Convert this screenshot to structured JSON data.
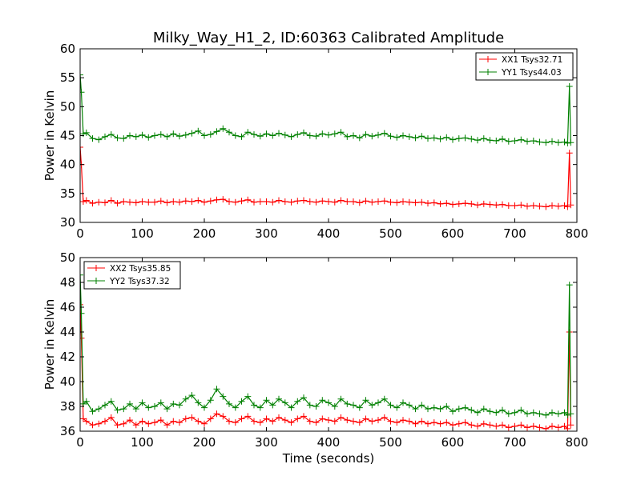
{
  "figure": {
    "title": "Milky_Way_H1_2, ID:60363 Calibrated Amplitude",
    "xlabel": "Time (seconds)"
  },
  "chart_data": [
    {
      "type": "line",
      "panel": "top",
      "title": "Milky_Way_H1_2, ID:60363 Calibrated Amplitude",
      "xlabel": "",
      "ylabel": "Power in Kelvin",
      "xlim": [
        0,
        800
      ],
      "ylim": [
        30,
        60
      ],
      "xticks": [
        0,
        100,
        200,
        300,
        400,
        500,
        600,
        700,
        800
      ],
      "yticks": [
        30,
        35,
        40,
        45,
        50,
        55,
        60
      ],
      "grid": false,
      "legend_position": "top-right",
      "series": [
        {
          "name": "XX1 Tsys32.71",
          "color": "#ff0000",
          "marker": "+",
          "x": [
            0,
            2,
            5,
            10,
            20,
            30,
            40,
            50,
            60,
            70,
            80,
            90,
            100,
            110,
            120,
            130,
            140,
            150,
            160,
            170,
            180,
            190,
            200,
            210,
            220,
            230,
            240,
            250,
            260,
            270,
            280,
            290,
            300,
            310,
            320,
            330,
            340,
            350,
            360,
            370,
            380,
            390,
            400,
            410,
            420,
            430,
            440,
            450,
            460,
            470,
            480,
            490,
            500,
            510,
            520,
            530,
            540,
            550,
            560,
            570,
            580,
            590,
            600,
            610,
            620,
            630,
            640,
            650,
            660,
            670,
            680,
            690,
            700,
            710,
            720,
            730,
            740,
            750,
            760,
            770,
            780,
            785,
            788,
            790
          ],
          "values": [
            43.0,
            40.0,
            33.6,
            33.8,
            33.3,
            33.5,
            33.4,
            33.8,
            33.3,
            33.6,
            33.5,
            33.4,
            33.6,
            33.5,
            33.5,
            33.7,
            33.4,
            33.6,
            33.5,
            33.7,
            33.6,
            33.8,
            33.5,
            33.7,
            33.9,
            34.0,
            33.6,
            33.5,
            33.7,
            33.9,
            33.5,
            33.6,
            33.6,
            33.5,
            33.8,
            33.6,
            33.5,
            33.7,
            33.8,
            33.6,
            33.5,
            33.7,
            33.6,
            33.5,
            33.8,
            33.6,
            33.6,
            33.4,
            33.7,
            33.5,
            33.6,
            33.7,
            33.5,
            33.4,
            33.6,
            33.5,
            33.4,
            33.5,
            33.3,
            33.4,
            33.2,
            33.3,
            33.1,
            33.2,
            33.3,
            33.2,
            33.0,
            33.2,
            33.1,
            33.0,
            33.1,
            32.9,
            32.9,
            33.0,
            32.8,
            32.9,
            32.8,
            32.7,
            32.9,
            32.8,
            32.9,
            32.7,
            42.0,
            33.0
          ]
        },
        {
          "name": "YY1 Tsys44.03",
          "color": "#008000",
          "marker": "+",
          "x": [
            0,
            2,
            5,
            10,
            20,
            30,
            40,
            50,
            60,
            70,
            80,
            90,
            100,
            110,
            120,
            130,
            140,
            150,
            160,
            170,
            180,
            190,
            200,
            210,
            220,
            230,
            240,
            250,
            260,
            270,
            280,
            290,
            300,
            310,
            320,
            330,
            340,
            350,
            360,
            370,
            380,
            390,
            400,
            410,
            420,
            430,
            440,
            450,
            460,
            470,
            480,
            490,
            500,
            510,
            520,
            530,
            540,
            550,
            560,
            570,
            580,
            590,
            600,
            610,
            620,
            630,
            640,
            650,
            660,
            670,
            680,
            690,
            700,
            710,
            720,
            730,
            740,
            750,
            760,
            770,
            780,
            785,
            788,
            790
          ],
          "values": [
            55.5,
            52.5,
            45.3,
            45.5,
            44.5,
            44.3,
            44.8,
            45.2,
            44.6,
            44.5,
            45.0,
            44.8,
            45.1,
            44.7,
            45.0,
            45.2,
            44.8,
            45.3,
            44.9,
            45.1,
            45.4,
            45.8,
            45.0,
            45.2,
            45.7,
            46.2,
            45.6,
            45.0,
            44.8,
            45.6,
            45.2,
            44.9,
            45.3,
            45.0,
            45.4,
            45.1,
            44.8,
            45.2,
            45.5,
            45.0,
            44.9,
            45.3,
            45.1,
            45.3,
            45.6,
            44.8,
            45.0,
            44.6,
            45.2,
            44.9,
            45.1,
            45.4,
            44.9,
            44.7,
            45.0,
            44.8,
            44.6,
            44.9,
            44.5,
            44.6,
            44.4,
            44.7,
            44.3,
            44.5,
            44.6,
            44.4,
            44.2,
            44.5,
            44.2,
            44.1,
            44.4,
            44.0,
            44.1,
            44.3,
            44.0,
            44.1,
            43.9,
            43.8,
            44.0,
            43.8,
            43.9,
            43.7,
            53.5,
            43.8
          ]
        }
      ]
    },
    {
      "type": "line",
      "panel": "bottom",
      "title": "",
      "xlabel": "Time (seconds)",
      "ylabel": "Power in Kelvin",
      "xlim": [
        0,
        800
      ],
      "ylim": [
        36,
        50
      ],
      "xticks": [
        0,
        100,
        200,
        300,
        400,
        500,
        600,
        700,
        800
      ],
      "yticks": [
        36,
        38,
        40,
        42,
        44,
        46,
        48,
        50
      ],
      "grid": false,
      "legend_position": "top-left",
      "series": [
        {
          "name": "XX2 Tsys35.85",
          "color": "#ff0000",
          "marker": "+",
          "x": [
            0,
            2,
            5,
            10,
            20,
            30,
            40,
            50,
            60,
            70,
            80,
            90,
            100,
            110,
            120,
            130,
            140,
            150,
            160,
            170,
            180,
            190,
            200,
            210,
            220,
            230,
            240,
            250,
            260,
            270,
            280,
            290,
            300,
            310,
            320,
            330,
            340,
            350,
            360,
            370,
            380,
            390,
            400,
            410,
            420,
            430,
            440,
            450,
            460,
            470,
            480,
            490,
            500,
            510,
            520,
            530,
            540,
            550,
            560,
            570,
            580,
            590,
            600,
            610,
            620,
            630,
            640,
            650,
            660,
            670,
            680,
            690,
            700,
            710,
            720,
            730,
            740,
            750,
            760,
            770,
            780,
            785,
            788,
            790
          ],
          "values": [
            46.2,
            43.5,
            37.0,
            36.8,
            36.5,
            36.6,
            36.8,
            37.1,
            36.5,
            36.6,
            36.9,
            36.5,
            36.8,
            36.6,
            36.7,
            36.9,
            36.5,
            36.8,
            36.7,
            37.0,
            37.1,
            36.8,
            36.6,
            37.0,
            37.4,
            37.2,
            36.8,
            36.7,
            37.0,
            37.2,
            36.8,
            36.7,
            37.0,
            36.8,
            37.1,
            36.9,
            36.7,
            37.0,
            37.2,
            36.8,
            36.7,
            37.0,
            36.9,
            36.8,
            37.1,
            36.9,
            36.8,
            36.7,
            37.0,
            36.8,
            36.9,
            37.1,
            36.8,
            36.7,
            36.9,
            36.8,
            36.6,
            36.8,
            36.6,
            36.7,
            36.6,
            36.7,
            36.5,
            36.6,
            36.7,
            36.5,
            36.4,
            36.6,
            36.5,
            36.4,
            36.5,
            36.3,
            36.4,
            36.5,
            36.3,
            36.4,
            36.3,
            36.2,
            36.4,
            36.3,
            36.4,
            36.2,
            44.0,
            36.5
          ]
        },
        {
          "name": "YY2 Tsys37.32",
          "color": "#008000",
          "marker": "+",
          "x": [
            0,
            2,
            5,
            10,
            20,
            30,
            40,
            50,
            60,
            70,
            80,
            90,
            100,
            110,
            120,
            130,
            140,
            150,
            160,
            170,
            180,
            190,
            200,
            210,
            220,
            230,
            240,
            250,
            260,
            270,
            280,
            290,
            300,
            310,
            320,
            330,
            340,
            350,
            360,
            370,
            380,
            390,
            400,
            410,
            420,
            430,
            440,
            450,
            460,
            470,
            480,
            490,
            500,
            510,
            520,
            530,
            540,
            550,
            560,
            570,
            580,
            590,
            600,
            610,
            620,
            630,
            640,
            650,
            660,
            670,
            680,
            690,
            700,
            710,
            720,
            730,
            740,
            750,
            760,
            770,
            780,
            785,
            788,
            790
          ],
          "values": [
            48.6,
            45.5,
            38.2,
            38.4,
            37.6,
            37.8,
            38.1,
            38.4,
            37.7,
            37.8,
            38.2,
            37.8,
            38.3,
            37.9,
            38.0,
            38.3,
            37.8,
            38.2,
            38.1,
            38.6,
            38.9,
            38.3,
            37.9,
            38.5,
            39.4,
            38.8,
            38.2,
            37.9,
            38.4,
            38.8,
            38.1,
            37.9,
            38.5,
            38.1,
            38.6,
            38.3,
            37.9,
            38.4,
            38.7,
            38.1,
            38.0,
            38.5,
            38.3,
            38.0,
            38.6,
            38.2,
            38.1,
            37.9,
            38.5,
            38.1,
            38.3,
            38.6,
            38.1,
            37.9,
            38.3,
            38.1,
            37.8,
            38.1,
            37.8,
            37.9,
            37.8,
            38.0,
            37.6,
            37.8,
            37.9,
            37.7,
            37.5,
            37.8,
            37.6,
            37.5,
            37.7,
            37.4,
            37.5,
            37.7,
            37.4,
            37.5,
            37.4,
            37.3,
            37.5,
            37.4,
            37.5,
            37.3,
            47.8,
            37.4
          ]
        }
      ]
    }
  ]
}
